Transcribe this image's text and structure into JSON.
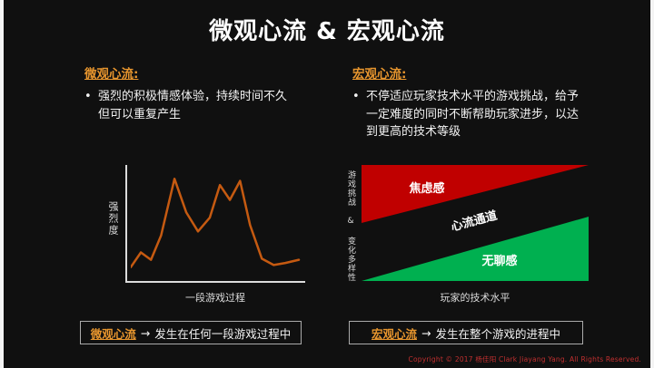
{
  "slide": {
    "title": "微观心流 & 宏观心流",
    "bullet_char": "•",
    "left": {
      "heading": "微观心流:",
      "bullet": "强烈的积极情感体验，持续时间不久但可以重复产生"
    },
    "right": {
      "heading": "宏观心流:",
      "bullet": "不停适应玩家技术水平的游戏挑战，给予一定难度的同时不断帮助玩家进步，以达到更高的技术等级"
    },
    "footer": {
      "arrow": "→",
      "left_term": "微观心流",
      "left_text": "发生在任何一段游戏过程中",
      "right_term": "宏观心流",
      "right_text": "发生在整个游戏的进程中"
    },
    "copyright": "Copyright © 2017 杨佳阳 Clark Jiayang Yang. All Rights Reserved."
  },
  "chart_data": [
    {
      "type": "line",
      "title": "",
      "xlabel": "一段游戏过程",
      "ylabel": "强烈度",
      "x": [
        0,
        6,
        12,
        18,
        26,
        33,
        40,
        47,
        53,
        59,
        65,
        71,
        78,
        85,
        92,
        100
      ],
      "y": [
        8,
        22,
        15,
        38,
        92,
        60,
        42,
        55,
        86,
        72,
        90,
        48,
        16,
        10,
        12,
        15
      ],
      "x_range": [
        0,
        100
      ],
      "y_range": [
        0,
        100
      ],
      "grid": false,
      "line_color": "#C55A11"
    },
    {
      "type": "area",
      "title": "",
      "xlabel": "玩家的技术水平",
      "ylabel": "游戏挑战 & 变化多样性",
      "regions": [
        {
          "label": "焦虑感",
          "color": "#C00000",
          "position": "upper-left-triangle"
        },
        {
          "label": "心流通道",
          "color": "none",
          "position": "diagonal-band"
        },
        {
          "label": "无聊感",
          "color": "#00B050",
          "position": "lower-right-triangle"
        }
      ]
    }
  ]
}
